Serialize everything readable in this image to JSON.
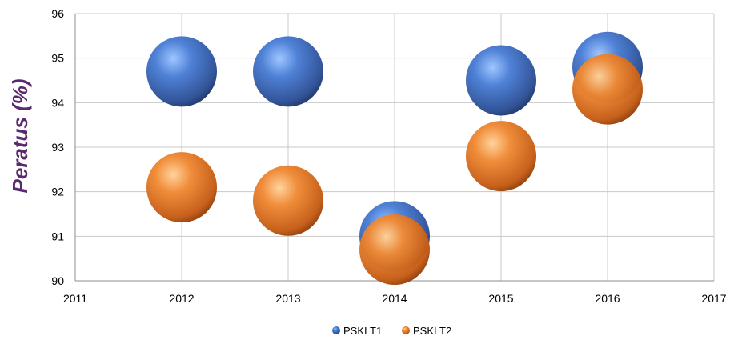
{
  "chart_data": {
    "type": "scatter",
    "title": "",
    "xlabel": "",
    "ylabel": "Peratus (%)",
    "ylabel_color": "#5b2a6e",
    "xlim": [
      2011,
      2017
    ],
    "ylim": [
      90,
      96
    ],
    "x_ticks": [
      "2011",
      "2012",
      "2013",
      "2014",
      "2015",
      "2016",
      "2017"
    ],
    "y_ticks": [
      "90",
      "91",
      "92",
      "93",
      "94",
      "95",
      "96"
    ],
    "grid": true,
    "legend_position": "bottom",
    "series": [
      {
        "name": "PSKI T1",
        "color": "#3a6bc4",
        "points": [
          {
            "x": 2012,
            "y": 94.7
          },
          {
            "x": 2013,
            "y": 94.7
          },
          {
            "x": 2014,
            "y": 91.0
          },
          {
            "x": 2015,
            "y": 94.5
          },
          {
            "x": 2016,
            "y": 94.8
          }
        ]
      },
      {
        "name": "PSKI T2",
        "color": "#e8782a",
        "points": [
          {
            "x": 2012,
            "y": 92.1
          },
          {
            "x": 2013,
            "y": 91.8
          },
          {
            "x": 2014,
            "y": 90.7
          },
          {
            "x": 2015,
            "y": 92.8
          },
          {
            "x": 2016,
            "y": 94.3
          }
        ]
      }
    ]
  }
}
